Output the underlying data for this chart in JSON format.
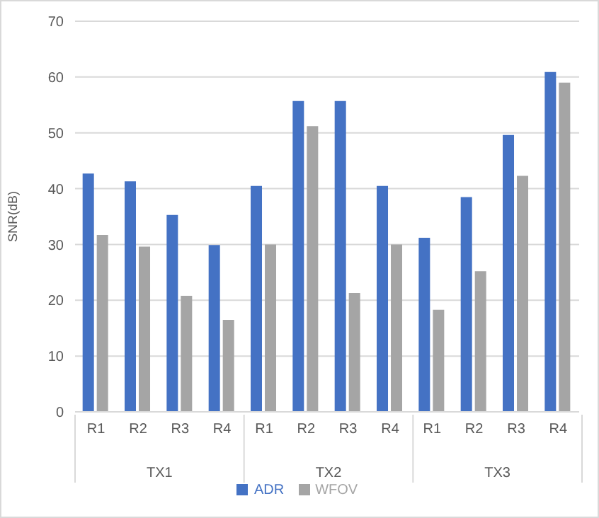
{
  "chart_data": {
    "type": "bar",
    "ylabel": "SNR(dB)",
    "categories": [
      "R1",
      "R2",
      "R3",
      "R4",
      "R1",
      "R2",
      "R3",
      "R4",
      "R1",
      "R2",
      "R3",
      "R4"
    ],
    "annotations": [
      "TX1",
      "TX2",
      "TX3"
    ],
    "series": [
      {
        "name": "ADR",
        "color": "#4472c4",
        "values": [
          42.7,
          41.3,
          35.3,
          29.9,
          40.5,
          55.7,
          55.7,
          40.5,
          31.2,
          38.5,
          49.6,
          60.9
        ]
      },
      {
        "name": "WFOV",
        "color": "#a5a5a5",
        "values": [
          31.7,
          29.6,
          20.8,
          16.5,
          30,
          51.2,
          21.3,
          30,
          18.3,
          25.2,
          42.3,
          59
        ]
      }
    ],
    "ylim": [
      0,
      70
    ],
    "yticks": [
      0,
      10,
      20,
      30,
      40,
      50,
      60,
      70
    ],
    "grid": "y",
    "legend": "bottom"
  }
}
